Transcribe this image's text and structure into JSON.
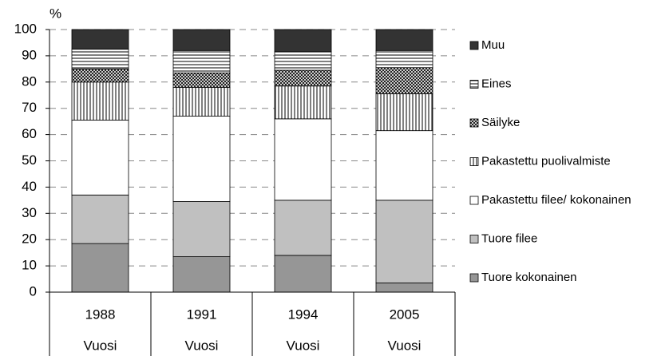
{
  "chart_data": {
    "type": "stacked_bar",
    "ylabel": "%",
    "xlabel": "Vuosi",
    "categories": [
      "1988",
      "1991",
      "1994",
      "2005"
    ],
    "ylim": [
      0,
      100
    ],
    "yticks": [
      0,
      10,
      20,
      30,
      40,
      50,
      60,
      70,
      80,
      90,
      100
    ],
    "grid": true,
    "legend": "right",
    "series": [
      {
        "name": "Tuore kokonainen",
        "color": "#969696",
        "pattern": "solid",
        "values": [
          18.5,
          13.5,
          14,
          3.5
        ]
      },
      {
        "name": "Tuore filee",
        "color": "#c0c0c0",
        "pattern": "solid",
        "values": [
          18.5,
          21,
          21,
          31.5
        ]
      },
      {
        "name": "Pakastettu filee/ kokonainen",
        "color": "#ffffff",
        "pattern": "solid",
        "values": [
          28.5,
          32.5,
          31,
          26.5
        ]
      },
      {
        "name": "Pakastettu puolivalmiste",
        "color": "#ffffff",
        "pattern": "vertical",
        "values": [
          14.5,
          11,
          12.5,
          14
        ]
      },
      {
        "name": "Säilyke",
        "color": "#ffffff",
        "pattern": "crosshatch",
        "values": [
          5,
          5.5,
          6,
          10
        ]
      },
      {
        "name": "Eines",
        "color": "#ffffff",
        "pattern": "horizontal",
        "values": [
          7.5,
          8.5,
          7,
          6.5
        ]
      },
      {
        "name": "Muu",
        "color": "#333333",
        "pattern": "solid",
        "values": [
          7.5,
          8,
          8.5,
          8
        ]
      }
    ]
  }
}
